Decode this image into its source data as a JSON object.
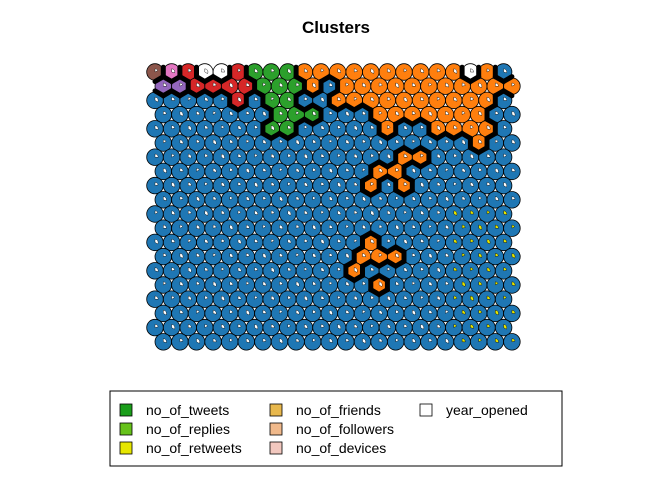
{
  "chart_data": {
    "type": "som_hexagonal_codes",
    "title": "Clusters",
    "grid": {
      "cols": 22,
      "rows": 20,
      "topology": "hexagonal"
    },
    "cluster_colors": {
      "c1": "#1f77b4",
      "c2": "#ff7f0e",
      "c3": "#2ca02c",
      "c4": "#d62728",
      "c5": "#9467bd",
      "c6": "#8c564b",
      "c7": "#e377c2",
      "c8": "#ffffff"
    },
    "cluster_map_top_rows": [
      "6 7 4 8 8 4 3 3 3 2 2 2 2 2 2 2 2 2 2 8 2 0",
      "5 5 4 4 4 4 3 3 3 2 1 2 2 2 2 2 2 2 2 2 2 2",
      "1 1 1 1 1 4 1 3 3 1 1 2 2 2 2 2 2 2 2 2 2 0",
      "1 1 1 1 1 1 1 3 3 3 1 1 1 2 2 2 2 2 2 2 1 0",
      "1 1 1 1 1 1 1 3 3 1 1 1 1 1 2 1 1 2 2 2 2 0",
      "1 1 1 1 1 1 1 1 1 1 1 1 1 1 1 1 1 1 1 2 1 0",
      "1 1 1 1 1 1 1 1 1 1 1 1 1 1 1 2 2 1 1 1 1 0",
      "1 1 1 1 1 1 1 1 1 1 1 1 1 2 1 1 1 1 1 1 1 0"
    ],
    "extra_orange_units": [
      [
        12,
        13
      ],
      [
        13,
        12
      ],
      [
        14,
        13
      ]
    ],
    "legend": {
      "columns": [
        [
          {
            "label": "no_of_tweets",
            "color": "#1a9e1a"
          },
          {
            "label": "no_of_replies",
            "color": "#66c21a"
          },
          {
            "label": "no_of_retweets",
            "color": "#e6e600"
          }
        ],
        [
          {
            "label": "no_of_friends",
            "color": "#e8b84d"
          },
          {
            "label": "no_of_followers",
            "color": "#f0b98b"
          },
          {
            "label": "no_of_devices",
            "color": "#f2c8bf"
          }
        ],
        [
          {
            "label": "year_opened",
            "color": "#ffffff"
          }
        ]
      ]
    },
    "grid_lines": false
  }
}
